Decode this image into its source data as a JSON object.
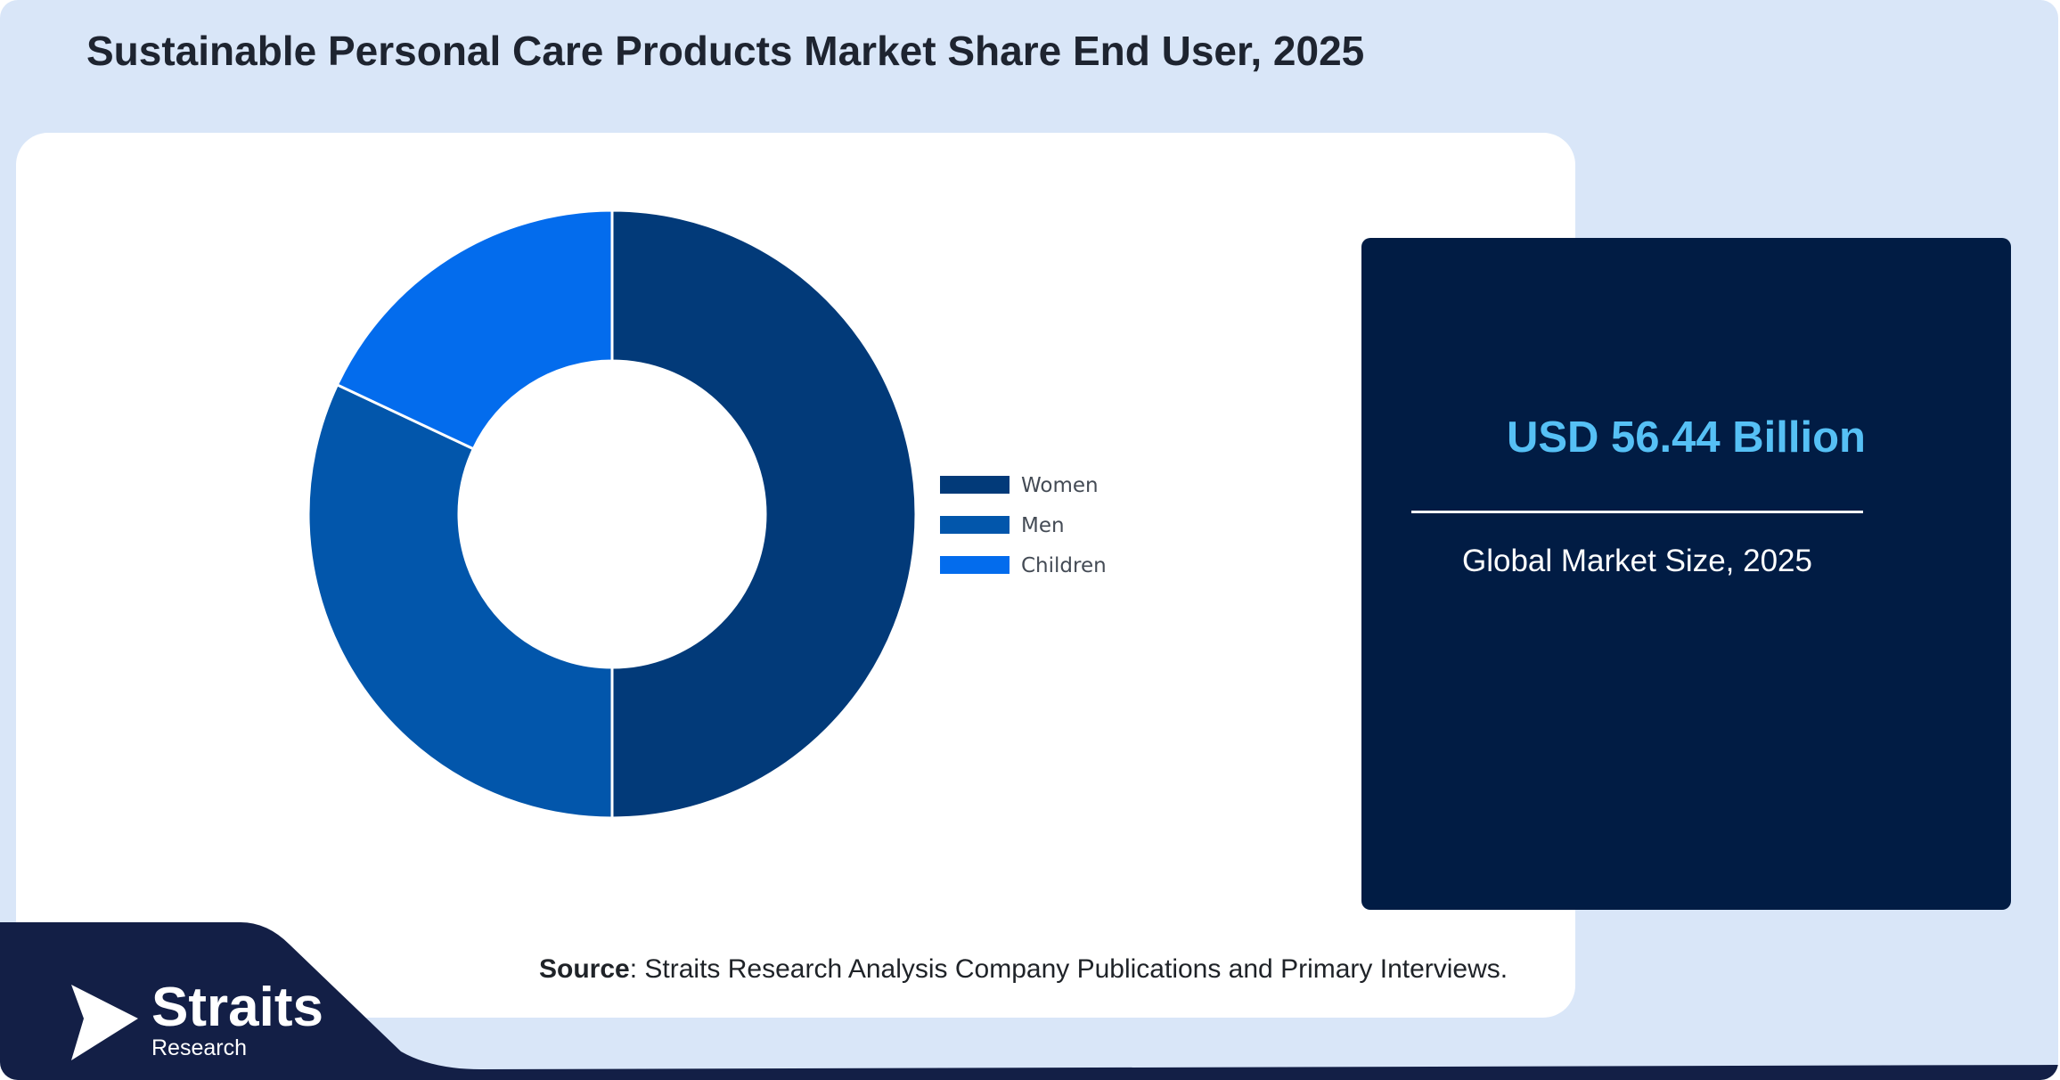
{
  "title": "Sustainable Personal Care Products Market Share End User, 2025",
  "chart_data": {
    "type": "pie",
    "variant": "donut",
    "categories": [
      "Women",
      "Men",
      "Children"
    ],
    "values": [
      50.0,
      32.0,
      18.0
    ],
    "unit": "%",
    "colors": [
      "#023a79",
      "#0256ab",
      "#036ced"
    ],
    "legend_position": "right"
  },
  "info_box": {
    "value": "USD 56.44 Billion",
    "label": "Global Market Size, 2025"
  },
  "source": {
    "label": "Source",
    "text": ": Straits Research Analysis Company Publications and Primary Interviews."
  },
  "logo": {
    "name": "Straits",
    "sub": "Research"
  },
  "colors": {
    "background": "#d9e6f8",
    "panel": "#011c44",
    "accent": "#56c0f5",
    "footer": "#131f46"
  }
}
